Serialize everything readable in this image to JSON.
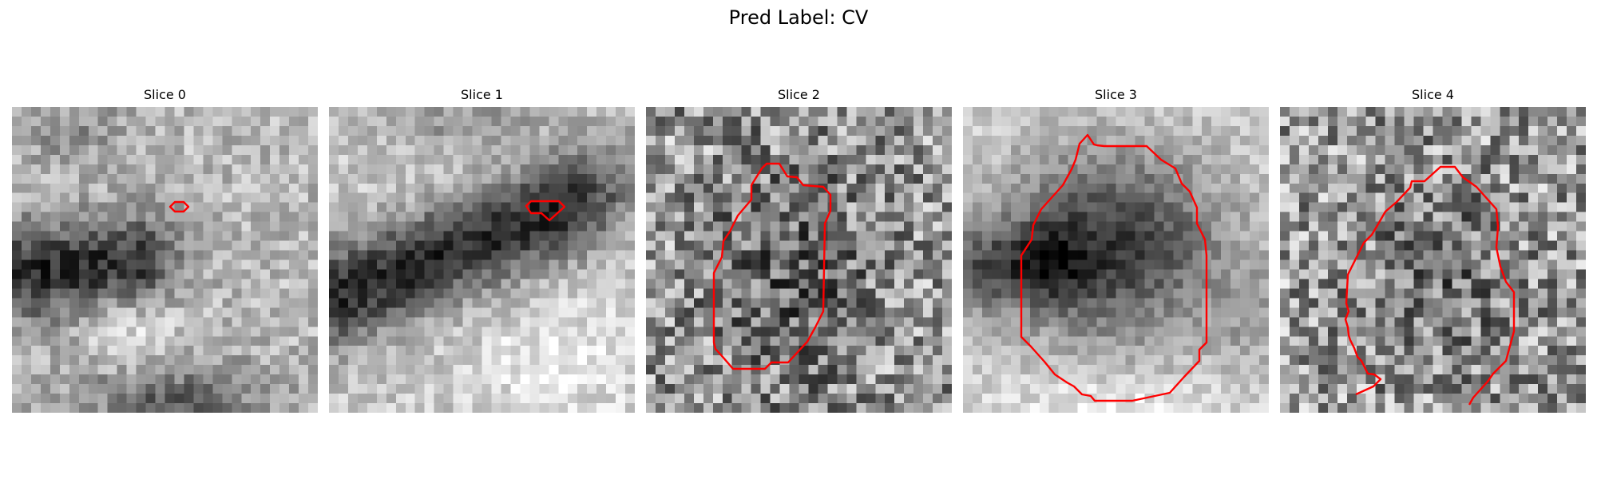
{
  "figure": {
    "title": "Pred Label: CV"
  },
  "contour_color": "#ff0000",
  "slices": [
    {
      "title": "Slice 0"
    },
    {
      "title": "Slice 1"
    },
    {
      "title": "Slice 2"
    },
    {
      "title": "Slice 3"
    },
    {
      "title": "Slice 4"
    }
  ]
}
